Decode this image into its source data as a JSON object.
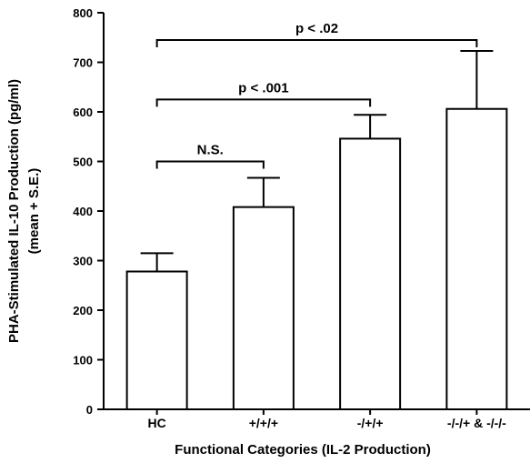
{
  "chart_data": {
    "type": "bar",
    "categories": [
      "HC",
      "+/+/+",
      "-/+/+",
      "-/-/+ & -/-/-"
    ],
    "values": [
      278,
      408,
      546,
      606
    ],
    "errors": [
      37,
      59,
      48,
      117
    ],
    "ylim": [
      0,
      800
    ],
    "yticks": [
      "0",
      "100",
      "200",
      "300",
      "400",
      "500",
      "600",
      "700",
      "800"
    ],
    "ylabel_line1": "PHA-Stimulated IL-10 Production (pg/ml)",
    "ylabel_line2": "(mean + S.E.)",
    "xlabel": "Functional Categories (IL-2 Production)",
    "colors": {
      "bar_fill": "#ffffff",
      "stroke": "#000000"
    },
    "brackets": [
      {
        "from": 0,
        "to": 1,
        "y": 500,
        "label": "N.S."
      },
      {
        "from": 0,
        "to": 2,
        "y": 625,
        "label": "p < .001"
      },
      {
        "from": 0,
        "to": 3,
        "y": 745,
        "label": "p < .02"
      }
    ]
  }
}
